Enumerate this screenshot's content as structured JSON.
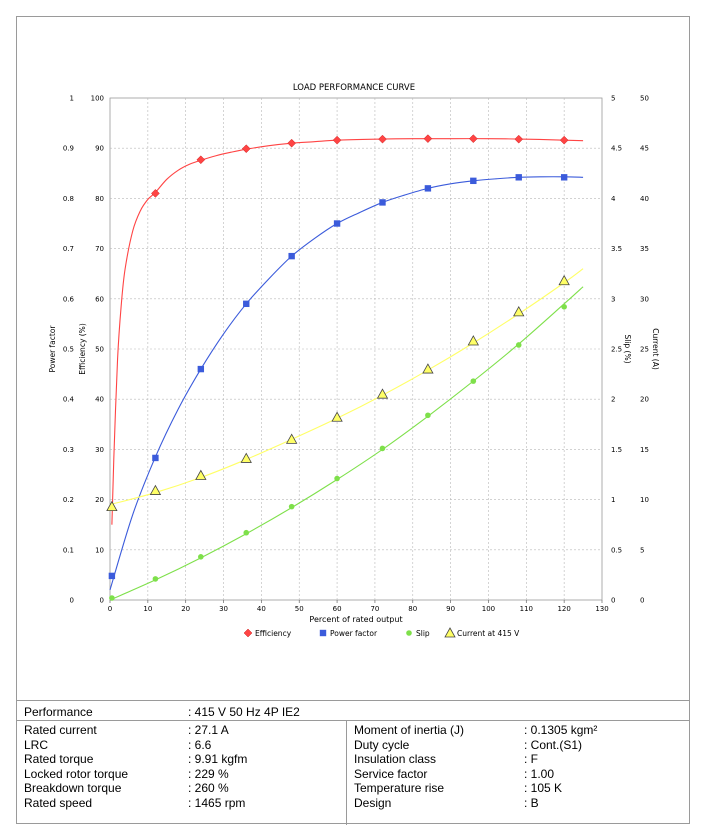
{
  "chart_data": {
    "type": "line",
    "title": "LOAD PERFORMANCE CURVE",
    "xlabel": "Percent of rated output",
    "xlim": [
      0,
      130
    ],
    "xticks": [
      0,
      10,
      20,
      30,
      40,
      50,
      60,
      70,
      80,
      90,
      100,
      110,
      120,
      130
    ],
    "grid": true,
    "legend_position": "bottom",
    "axes": {
      "power_factor": {
        "label": "Power factor",
        "ylim": [
          0,
          1
        ],
        "ticks": [
          "0",
          "0.1",
          "0.2",
          "0.3",
          "0.4",
          "0.5",
          "0.6",
          "0.7",
          "0.8",
          "0.9",
          "1"
        ]
      },
      "efficiency": {
        "label": "Efficiency (%)",
        "ylim": [
          0,
          100
        ],
        "ticks": [
          "0",
          "10",
          "20",
          "30",
          "40",
          "50",
          "60",
          "70",
          "80",
          "90",
          "100"
        ]
      },
      "slip": {
        "label": "Slip (%)",
        "ylim": [
          0,
          5
        ],
        "ticks": [
          "0",
          "0.5",
          "1",
          "1.5",
          "2",
          "2.5",
          "3",
          "3.5",
          "4",
          "4.5",
          "5"
        ]
      },
      "current": {
        "label": "Current (A)",
        "ylim": [
          0,
          50
        ],
        "ticks": [
          "0",
          "5",
          "10",
          "15",
          "20",
          "25",
          "30",
          "35",
          "40",
          "45",
          "50"
        ]
      }
    },
    "series": [
      {
        "name": "Efficiency",
        "axis": "efficiency",
        "color": "#ff4444",
        "marker": "diamond",
        "x": [
          12,
          24,
          36,
          48,
          60,
          72,
          84,
          96,
          108,
          120
        ],
        "y": [
          81,
          87.7,
          89.9,
          91,
          91.6,
          91.8,
          91.9,
          91.9,
          91.8,
          91.6
        ],
        "curve_x": [
          0.5,
          1,
          2,
          3,
          4,
          6,
          8,
          10,
          12,
          15,
          18,
          21,
          24,
          28,
          32,
          36,
          42,
          48,
          54,
          60,
          70,
          80,
          90,
          100,
          110,
          120,
          125
        ],
        "curve_y": [
          15,
          28,
          48,
          59,
          66,
          73.5,
          77.5,
          79.8,
          81.2,
          83.8,
          85.6,
          86.8,
          87.6,
          88.5,
          89.2,
          89.8,
          90.5,
          91,
          91.3,
          91.6,
          91.8,
          91.9,
          91.9,
          91.9,
          91.8,
          91.6,
          91.5
        ]
      },
      {
        "name": "Power factor",
        "axis": "power_factor",
        "color": "#3b5bdb",
        "marker": "square",
        "x": [
          0.5,
          12,
          24,
          36,
          48,
          60,
          72,
          84,
          96,
          108,
          120
        ],
        "y": [
          0.048,
          0.283,
          0.46,
          0.59,
          0.685,
          0.75,
          0.792,
          0.82,
          0.835,
          0.842,
          0.842
        ],
        "curve_x": [
          0,
          6,
          12,
          18,
          24,
          30,
          36,
          42,
          48,
          54,
          60,
          66,
          72,
          78,
          84,
          90,
          96,
          102,
          108,
          114,
          120,
          125
        ],
        "curve_y": [
          0.02,
          0.17,
          0.285,
          0.38,
          0.46,
          0.53,
          0.59,
          0.64,
          0.685,
          0.72,
          0.75,
          0.772,
          0.792,
          0.807,
          0.82,
          0.829,
          0.835,
          0.839,
          0.842,
          0.843,
          0.843,
          0.842
        ]
      },
      {
        "name": "Slip",
        "axis": "slip",
        "color": "#7ee04a",
        "marker": "circle",
        "x": [
          0.5,
          12,
          24,
          36,
          48,
          60,
          72,
          84,
          96,
          108,
          120
        ],
        "y": [
          0.02,
          0.21,
          0.43,
          0.67,
          0.93,
          1.21,
          1.51,
          1.84,
          2.18,
          2.54,
          2.92
        ],
        "curve_x": [
          0,
          12,
          24,
          36,
          48,
          60,
          72,
          84,
          96,
          108,
          120,
          125
        ],
        "curve_y": [
          0,
          0.2,
          0.42,
          0.66,
          0.92,
          1.2,
          1.5,
          1.83,
          2.18,
          2.55,
          2.95,
          3.12
        ]
      },
      {
        "name": "Current at 415 V",
        "axis": "current",
        "color": "#ffff66",
        "marker": "triangle",
        "x": [
          0.5,
          12,
          24,
          36,
          48,
          60,
          72,
          84,
          96,
          108,
          120
        ],
        "y": [
          9.3,
          10.9,
          12.4,
          14.1,
          16,
          18.2,
          20.5,
          23,
          25.8,
          28.7,
          31.8
        ],
        "curve_x": [
          0,
          12,
          24,
          36,
          48,
          60,
          72,
          84,
          96,
          108,
          120,
          125
        ],
        "curve_y": [
          9.5,
          10.7,
          12.2,
          14,
          16,
          18.1,
          20.4,
          22.9,
          25.6,
          28.5,
          31.6,
          33
        ]
      }
    ]
  },
  "specs": {
    "header": {
      "label": "Performance",
      "value": ": 415 V 50 Hz 4P IE2"
    },
    "left": [
      {
        "label": "Rated current",
        "value": ": 27.1 A"
      },
      {
        "label": "LRC",
        "value": ": 6.6"
      },
      {
        "label": "Rated torque",
        "value": ": 9.91 kgfm"
      },
      {
        "label": "Locked rotor torque",
        "value": ": 229 %"
      },
      {
        "label": "Breakdown torque",
        "value": ": 260 %"
      },
      {
        "label": "Rated speed",
        "value": ": 1465 rpm"
      }
    ],
    "right": [
      {
        "label": "Moment of inertia (J)",
        "value": ": 0.1305 kgm²"
      },
      {
        "label": "Duty cycle",
        "value": ": Cont.(S1)"
      },
      {
        "label": "Insulation class",
        "value": ": F"
      },
      {
        "label": "Service factor",
        "value": ": 1.00"
      },
      {
        "label": "Temperature rise",
        "value": ": 105 K"
      },
      {
        "label": "Design",
        "value": ": B"
      }
    ]
  }
}
